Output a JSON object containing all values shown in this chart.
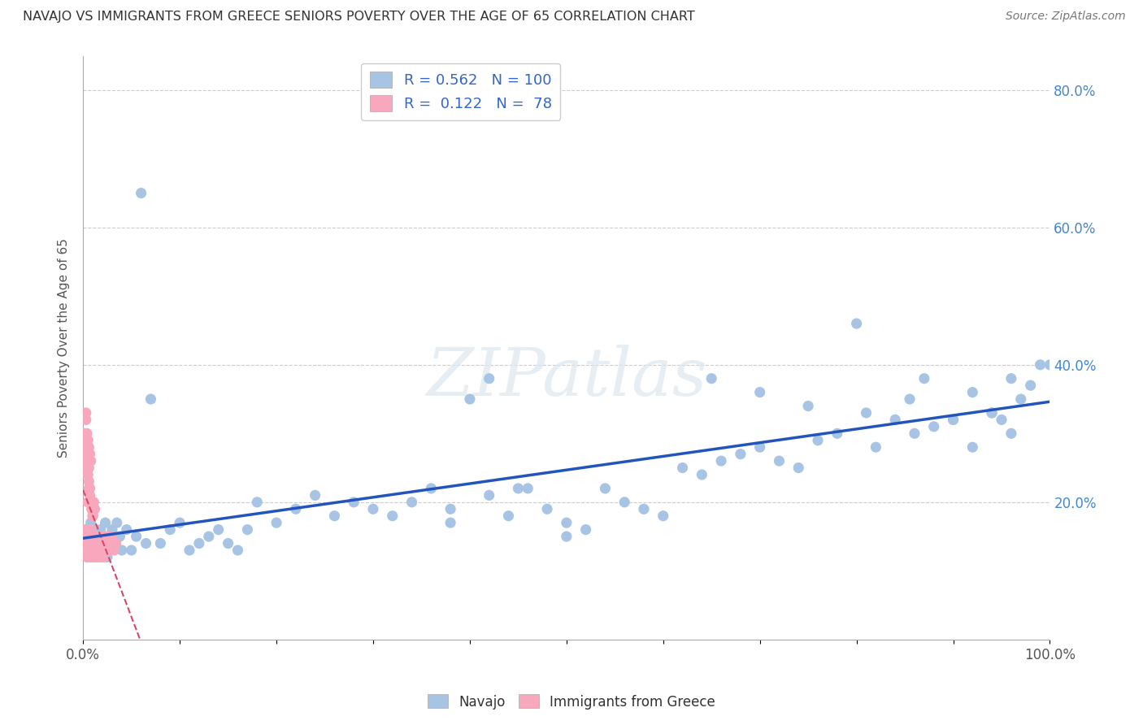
{
  "title": "NAVAJO VS IMMIGRANTS FROM GREECE SENIORS POVERTY OVER THE AGE OF 65 CORRELATION CHART",
  "source": "Source: ZipAtlas.com",
  "ylabel": "Seniors Poverty Over the Age of 65",
  "navajo_R": 0.562,
  "navajo_N": 100,
  "greece_R": 0.122,
  "greece_N": 78,
  "navajo_color": "#a8c4e5",
  "navajo_line_color": "#2255bb",
  "greece_color": "#f7a8bc",
  "greece_line_color": "#dd4466",
  "background_color": "#ffffff",
  "xlim": [
    0.0,
    1.0
  ],
  "ylim": [
    0.0,
    0.85
  ],
  "navajo_x": [
    0.003,
    0.005,
    0.007,
    0.008,
    0.009,
    0.01,
    0.011,
    0.012,
    0.013,
    0.014,
    0.015,
    0.016,
    0.017,
    0.018,
    0.019,
    0.02,
    0.022,
    0.023,
    0.025,
    0.027,
    0.03,
    0.032,
    0.035,
    0.038,
    0.04,
    0.045,
    0.05,
    0.055,
    0.06,
    0.065,
    0.07,
    0.08,
    0.09,
    0.1,
    0.11,
    0.12,
    0.13,
    0.14,
    0.15,
    0.16,
    0.17,
    0.18,
    0.2,
    0.22,
    0.24,
    0.26,
    0.28,
    0.3,
    0.32,
    0.34,
    0.36,
    0.38,
    0.4,
    0.42,
    0.44,
    0.46,
    0.48,
    0.5,
    0.52,
    0.54,
    0.56,
    0.58,
    0.6,
    0.62,
    0.64,
    0.66,
    0.68,
    0.7,
    0.72,
    0.74,
    0.76,
    0.78,
    0.8,
    0.82,
    0.84,
    0.86,
    0.88,
    0.9,
    0.92,
    0.94,
    0.95,
    0.96,
    0.97,
    0.98,
    0.99,
    1.0,
    0.45,
    0.5,
    0.38,
    0.42,
    0.65,
    0.7,
    0.75,
    0.81,
    0.855,
    0.87,
    0.9,
    0.92,
    0.94,
    0.96
  ],
  "navajo_y": [
    0.16,
    0.14,
    0.13,
    0.17,
    0.12,
    0.15,
    0.14,
    0.16,
    0.13,
    0.15,
    0.14,
    0.12,
    0.15,
    0.16,
    0.13,
    0.14,
    0.15,
    0.17,
    0.12,
    0.14,
    0.16,
    0.14,
    0.17,
    0.15,
    0.13,
    0.16,
    0.13,
    0.15,
    0.65,
    0.14,
    0.35,
    0.14,
    0.16,
    0.17,
    0.13,
    0.14,
    0.15,
    0.16,
    0.14,
    0.13,
    0.16,
    0.2,
    0.17,
    0.19,
    0.21,
    0.18,
    0.2,
    0.19,
    0.18,
    0.2,
    0.22,
    0.19,
    0.35,
    0.21,
    0.18,
    0.22,
    0.19,
    0.17,
    0.16,
    0.22,
    0.2,
    0.19,
    0.18,
    0.25,
    0.24,
    0.26,
    0.27,
    0.28,
    0.26,
    0.25,
    0.29,
    0.3,
    0.46,
    0.28,
    0.32,
    0.3,
    0.31,
    0.32,
    0.36,
    0.33,
    0.32,
    0.38,
    0.35,
    0.37,
    0.4,
    0.4,
    0.22,
    0.15,
    0.17,
    0.38,
    0.38,
    0.36,
    0.34,
    0.33,
    0.35,
    0.38,
    0.32,
    0.28,
    0.33,
    0.3
  ],
  "greece_x": [
    0.001,
    0.002,
    0.003,
    0.003,
    0.004,
    0.004,
    0.005,
    0.005,
    0.006,
    0.006,
    0.007,
    0.007,
    0.008,
    0.008,
    0.009,
    0.009,
    0.01,
    0.01,
    0.011,
    0.011,
    0.012,
    0.012,
    0.013,
    0.013,
    0.014,
    0.014,
    0.015,
    0.015,
    0.016,
    0.016,
    0.017,
    0.017,
    0.018,
    0.018,
    0.019,
    0.019,
    0.02,
    0.02,
    0.021,
    0.022,
    0.023,
    0.024,
    0.025,
    0.026,
    0.027,
    0.028,
    0.029,
    0.03,
    0.032,
    0.034,
    0.002,
    0.003,
    0.004,
    0.005,
    0.006,
    0.007,
    0.008,
    0.003,
    0.004,
    0.005,
    0.006,
    0.005,
    0.006,
    0.007,
    0.008,
    0.009,
    0.01,
    0.011,
    0.012,
    0.004,
    0.003,
    0.004,
    0.005,
    0.006,
    0.007,
    0.008,
    0.009,
    0.01
  ],
  "greece_y": [
    0.16,
    0.14,
    0.13,
    0.15,
    0.12,
    0.14,
    0.15,
    0.13,
    0.14,
    0.12,
    0.13,
    0.15,
    0.14,
    0.16,
    0.12,
    0.14,
    0.15,
    0.13,
    0.14,
    0.15,
    0.12,
    0.13,
    0.14,
    0.12,
    0.15,
    0.13,
    0.12,
    0.14,
    0.13,
    0.15,
    0.12,
    0.14,
    0.13,
    0.15,
    0.12,
    0.14,
    0.13,
    0.15,
    0.12,
    0.14,
    0.13,
    0.14,
    0.15,
    0.13,
    0.14,
    0.13,
    0.15,
    0.14,
    0.13,
    0.14,
    0.3,
    0.28,
    0.26,
    0.24,
    0.25,
    0.27,
    0.26,
    0.32,
    0.3,
    0.29,
    0.28,
    0.2,
    0.22,
    0.21,
    0.2,
    0.19,
    0.18,
    0.2,
    0.19,
    0.25,
    0.33,
    0.27,
    0.25,
    0.23,
    0.22,
    0.2,
    0.19,
    0.18
  ]
}
